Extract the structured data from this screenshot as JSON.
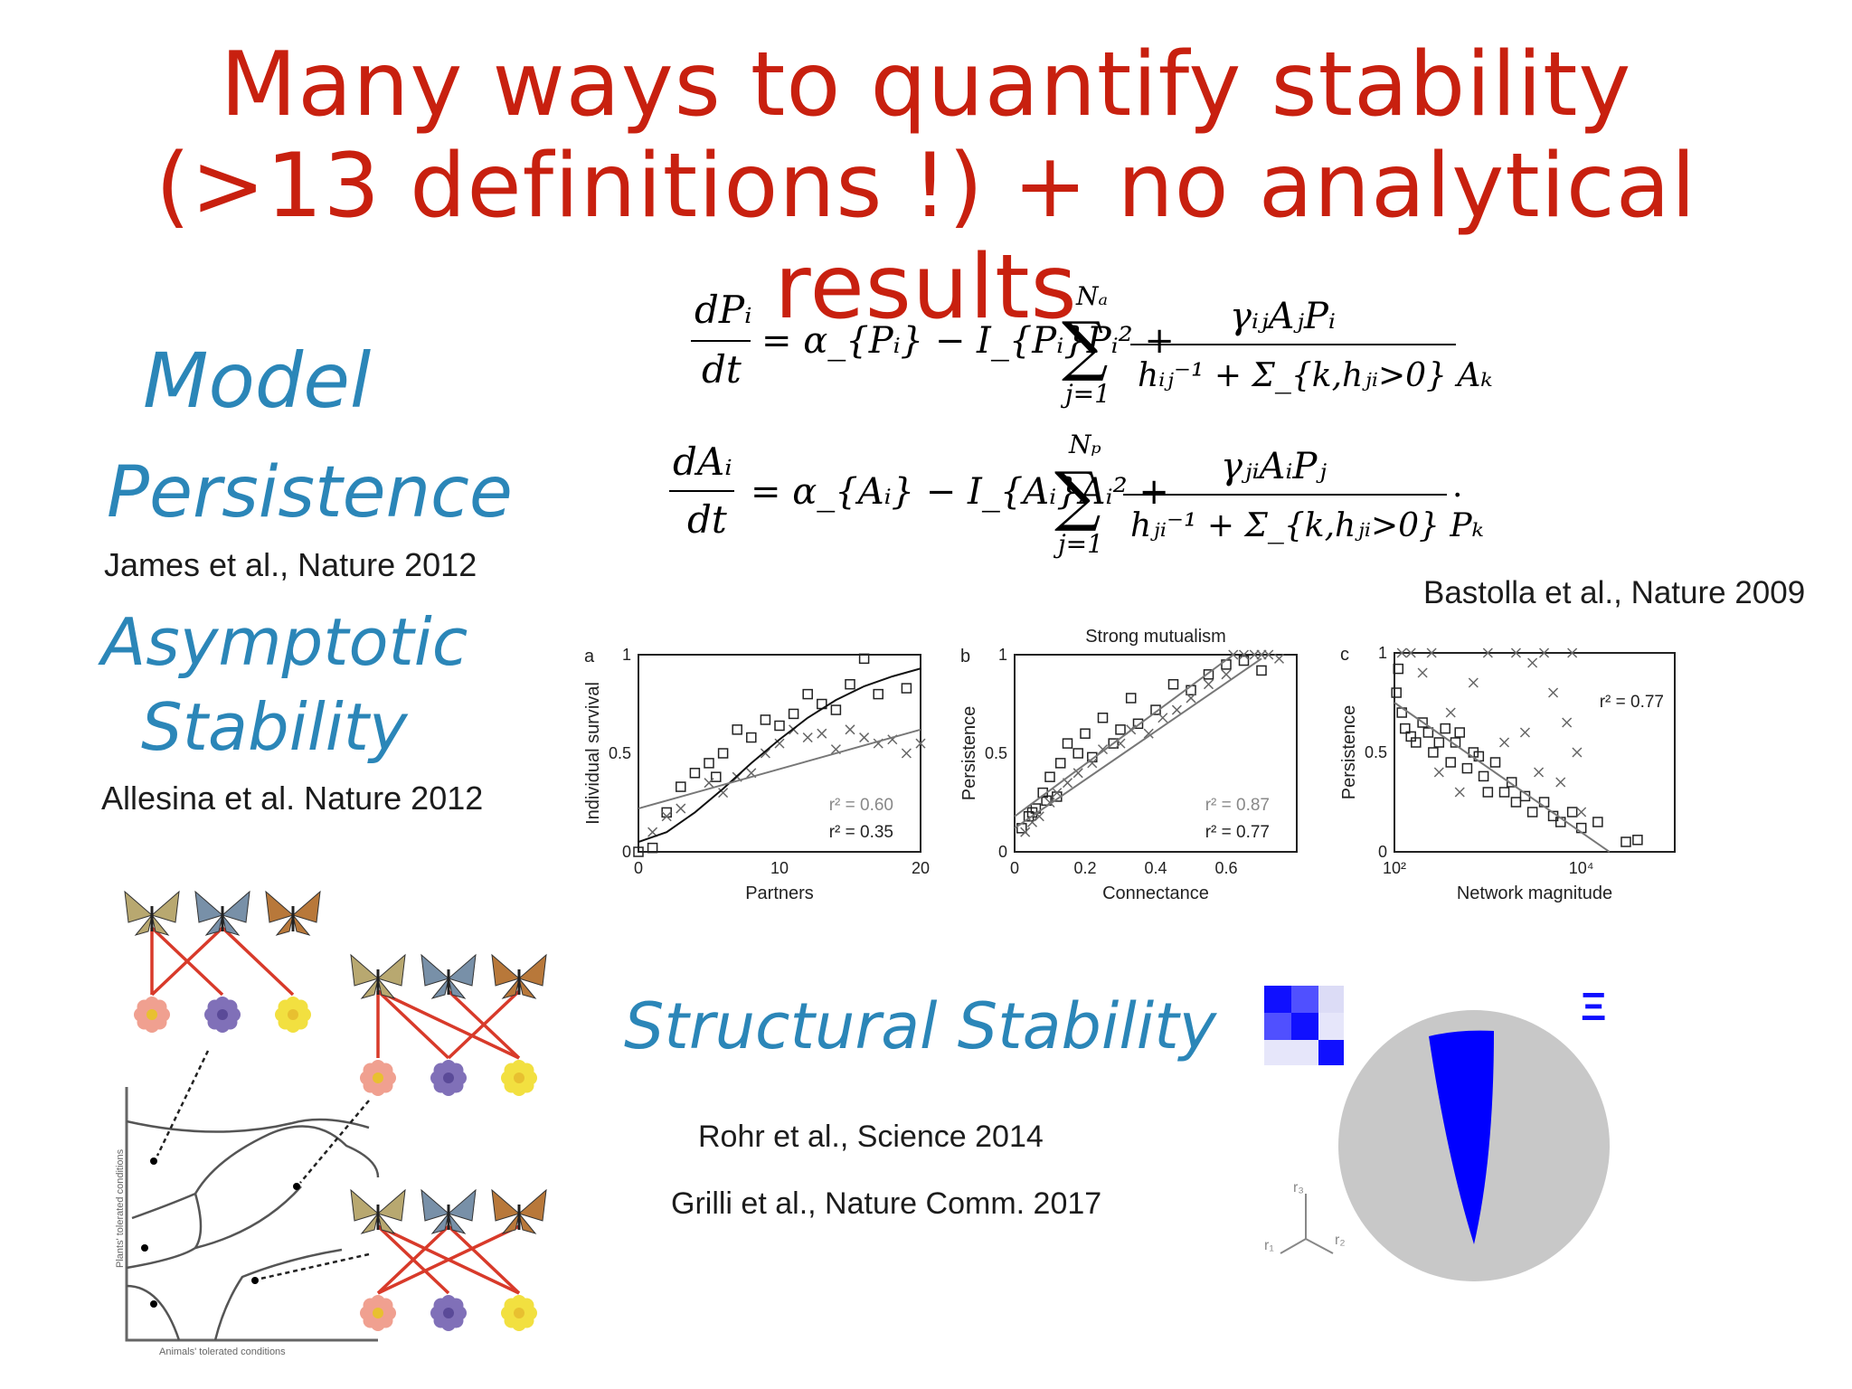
{
  "title": {
    "line1": "Many ways to quantify stability",
    "line2": "(>13 definitions !) + no analytical results"
  },
  "sections": {
    "model": "Model",
    "persistence": "Persistence",
    "persistence_cite": "James et al., Nature 2012",
    "asymptotic_1": "Asymptotic",
    "asymptotic_2": "Stability",
    "asymptotic_cite": "Allesina et al. Nature 2012",
    "structural": "Structural Stability",
    "structural_cite_1": "Rohr et al., Science 2014",
    "structural_cite_2": "Grilli et al., Nature Comm. 2017"
  },
  "model_cite": "Bastolla et al., Nature 2009",
  "equations": {
    "eq1": {
      "lhs_num": "dPᵢ",
      "lhs_den": "dt",
      "rhs": "= α_{Pᵢ} − I_{Pᵢ}Pᵢ² +",
      "sum_upper": "Nₐ",
      "sum_lower": "j=1",
      "frac_num": "γᵢⱼAⱼPᵢ",
      "frac_den": "hᵢⱼ⁻¹ + Σ_{k,hⱼᵢ>0} Aₖ"
    },
    "eq2": {
      "lhs_num": "dAᵢ",
      "lhs_den": "dt",
      "rhs": "= α_{Aᵢ} − I_{Aᵢ}Aᵢ² +",
      "sum_upper": "Nₚ",
      "sum_lower": "j=1",
      "frac_num": "γⱼᵢAᵢPⱼ",
      "frac_den": "hⱼᵢ⁻¹ + Σ_{k,hⱼᵢ>0} Pₖ"
    }
  },
  "chart_data": [
    {
      "type": "scatter",
      "panel": "a",
      "xlabel": "Partners",
      "ylabel": "Individual survival",
      "xlim": [
        0,
        20
      ],
      "ylim": [
        0,
        1
      ],
      "xticks": [
        "0",
        "10",
        "20"
      ],
      "yticks": [
        "0",
        "0.5",
        "1"
      ],
      "annotations": [
        "r² = 0.60",
        "r² = 0.35"
      ],
      "series": [
        {
          "marker": "square",
          "x": [
            0,
            1,
            2,
            3,
            4,
            5,
            5.5,
            6,
            7,
            8,
            9,
            10,
            11,
            12,
            13,
            14,
            15,
            16,
            17,
            19
          ],
          "y": [
            0,
            0.02,
            0.2,
            0.33,
            0.4,
            0.45,
            0.38,
            0.5,
            0.62,
            0.58,
            0.67,
            0.64,
            0.7,
            0.8,
            0.75,
            0.72,
            0.85,
            0.98,
            0.8,
            0.83
          ]
        },
        {
          "marker": "cross",
          "x": [
            1,
            2,
            3,
            5,
            6,
            7,
            8,
            9,
            10,
            11,
            12,
            13,
            14,
            15,
            16,
            17,
            18,
            19,
            20
          ],
          "y": [
            0.1,
            0.18,
            0.22,
            0.35,
            0.3,
            0.38,
            0.4,
            0.5,
            0.55,
            0.62,
            0.58,
            0.6,
            0.52,
            0.62,
            0.58,
            0.55,
            0.57,
            0.5,
            0.55
          ]
        },
        {
          "line": "sigmoid",
          "x": [
            0,
            2,
            4,
            6,
            8,
            10,
            12,
            14,
            16,
            18,
            20
          ],
          "y": [
            0.05,
            0.1,
            0.2,
            0.32,
            0.45,
            0.57,
            0.68,
            0.77,
            0.84,
            0.89,
            0.93
          ]
        },
        {
          "line": "linear",
          "x": [
            0,
            20
          ],
          "y": [
            0.22,
            0.62
          ]
        }
      ]
    },
    {
      "type": "scatter",
      "panel": "b",
      "title": "Strong mutualism",
      "xlabel": "Connectance",
      "ylabel": "Persistence",
      "xlim": [
        0,
        0.8
      ],
      "ylim": [
        0,
        1
      ],
      "xticks": [
        "0",
        "0.2",
        "0.4",
        "0.6"
      ],
      "yticks": [
        "0",
        "0.5",
        "1"
      ],
      "annotations": [
        "r² = 0.87",
        "r² = 0.77"
      ],
      "series": [
        {
          "marker": "square",
          "x": [
            0.02,
            0.04,
            0.05,
            0.06,
            0.08,
            0.09,
            0.1,
            0.12,
            0.13,
            0.15,
            0.18,
            0.2,
            0.22,
            0.25,
            0.28,
            0.3,
            0.33,
            0.35,
            0.4,
            0.45,
            0.5,
            0.55,
            0.6,
            0.65,
            0.7
          ],
          "y": [
            0.12,
            0.18,
            0.2,
            0.22,
            0.3,
            0.26,
            0.38,
            0.28,
            0.45,
            0.55,
            0.5,
            0.6,
            0.48,
            0.68,
            0.55,
            0.62,
            0.78,
            0.65,
            0.72,
            0.85,
            0.82,
            0.9,
            0.95,
            0.97,
            0.92
          ]
        },
        {
          "marker": "cross",
          "x": [
            0.03,
            0.05,
            0.07,
            0.1,
            0.12,
            0.15,
            0.18,
            0.22,
            0.25,
            0.3,
            0.33,
            0.38,
            0.42,
            0.46,
            0.5,
            0.55,
            0.6,
            0.62,
            0.65,
            0.68,
            0.7,
            0.72,
            0.75
          ],
          "y": [
            0.1,
            0.15,
            0.18,
            0.25,
            0.3,
            0.35,
            0.4,
            0.45,
            0.52,
            0.55,
            0.62,
            0.6,
            0.68,
            0.72,
            0.78,
            0.85,
            0.9,
            1,
            1,
            1,
            1,
            1,
            0.98
          ]
        },
        {
          "line": "linear",
          "x": [
            0,
            0.62
          ],
          "y": [
            0.18,
            1
          ]
        },
        {
          "line": "linear",
          "x": [
            0,
            0.7
          ],
          "y": [
            0.12,
            0.98
          ]
        }
      ]
    },
    {
      "type": "scatter",
      "panel": "c",
      "xlabel": "Network magnitude",
      "ylabel": "Persistence",
      "xscale": "log",
      "xlim": [
        100,
        100000
      ],
      "ylim": [
        0,
        1
      ],
      "xticks": [
        "10²",
        "10⁴"
      ],
      "yticks": [
        "0",
        "0.5",
        "1"
      ],
      "annotations": [
        "r² = 0.77"
      ],
      "series": [
        {
          "marker": "square",
          "x": [
            105,
            110,
            120,
            130,
            150,
            170,
            200,
            230,
            260,
            300,
            350,
            400,
            450,
            500,
            600,
            700,
            800,
            900,
            1000,
            1200,
            1500,
            1800,
            2000,
            2500,
            3000,
            4000,
            5000,
            6000,
            8000,
            10000,
            15000,
            30000,
            40000
          ],
          "y": [
            0.8,
            0.92,
            0.7,
            0.62,
            0.58,
            0.55,
            0.65,
            0.6,
            0.5,
            0.55,
            0.62,
            0.45,
            0.55,
            0.6,
            0.42,
            0.5,
            0.48,
            0.38,
            0.3,
            0.45,
            0.3,
            0.35,
            0.25,
            0.28,
            0.2,
            0.25,
            0.18,
            0.15,
            0.2,
            0.12,
            0.15,
            0.05,
            0.06
          ]
        },
        {
          "marker": "cross",
          "x": [
            120,
            150,
            200,
            250,
            300,
            400,
            500,
            700,
            1000,
            1500,
            2000,
            2500,
            3000,
            3500,
            4000,
            5000,
            6000,
            7000,
            8000,
            9000,
            10000
          ],
          "y": [
            1,
            1,
            0.9,
            1,
            0.4,
            0.7,
            0.3,
            0.85,
            1,
            0.55,
            1,
            0.6,
            0.95,
            0.4,
            1,
            0.8,
            0.35,
            0.65,
            1,
            0.5,
            0.2
          ]
        },
        {
          "line": "linear",
          "x": [
            100,
            20000
          ],
          "y": [
            0.75,
            0
          ]
        }
      ]
    }
  ],
  "structural_diagram": {
    "axis_labels": [
      "r₃",
      "r₁",
      "r₂"
    ],
    "xi_symbol": "Ξ",
    "colors": {
      "disk": "#c8c8c8",
      "cone": "#0000ff",
      "matrix_dark": "#1010ff",
      "matrix_mid": "#5050ff",
      "matrix_light": "#e6e6fa"
    }
  },
  "illustration": {
    "ylabel": "Plants' tolerated conditions",
    "xlabel": "Animals' tolerated conditions",
    "colors": {
      "edge": "#d83a2a",
      "flower_pink": "#f0a090",
      "flower_purple": "#8070b8",
      "flower_yellow": "#f2e040"
    }
  }
}
